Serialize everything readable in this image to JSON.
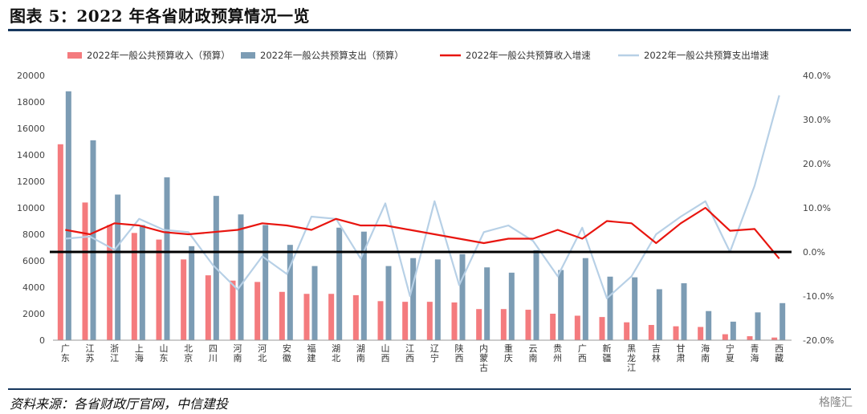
{
  "title": "图表 5：2022 年各省财政预算情况一览",
  "source": "资料来源：各省财政厅官网，中信建投",
  "watermark": "格隆汇",
  "colors": {
    "income_bar": "#f47b7e",
    "expense_bar": "#7c9cb4",
    "income_line": "#e8150f",
    "expense_line": "#b7d0e6",
    "baseline": "#000000",
    "rule": "#17375e"
  },
  "chart_data": {
    "type": "bar",
    "categories": [
      "广东",
      "江苏",
      "浙江",
      "上海",
      "山东",
      "北京",
      "四川",
      "河南",
      "河北",
      "安徽",
      "福建",
      "湖北",
      "湖南",
      "山西",
      "江西",
      "辽宁",
      "陕西",
      "内蒙古",
      "重庆",
      "云南",
      "贵州",
      "广西",
      "新疆",
      "黑龙江",
      "吉林",
      "甘肃",
      "海南",
      "宁夏",
      "青海",
      "西藏"
    ],
    "series": [
      {
        "name": "2022年一般公共预算收入（预算）",
        "axis": "left",
        "kind": "bar",
        "values": [
          14800,
          10400,
          8700,
          8100,
          7600,
          6100,
          4900,
          4500,
          4400,
          3650,
          3500,
          3500,
          3400,
          2950,
          2900,
          2900,
          2850,
          2350,
          2350,
          2300,
          2000,
          1850,
          1750,
          1350,
          1150,
          1050,
          1000,
          450,
          300,
          200
        ]
      },
      {
        "name": "2022年一般公共预算支出（预算）",
        "axis": "left",
        "kind": "bar",
        "values": [
          18800,
          15100,
          11000,
          8700,
          12300,
          7100,
          10900,
          9500,
          8700,
          7200,
          5600,
          8500,
          8200,
          5600,
          6200,
          6100,
          6500,
          5500,
          5100,
          6800,
          5300,
          6200,
          4800,
          4750,
          3850,
          4300,
          2200,
          1400,
          2100,
          2800
        ]
      },
      {
        "name": "2022年一般公共预算收入增速",
        "axis": "right",
        "kind": "line",
        "values": [
          5.0,
          4.0,
          6.5,
          6.0,
          4.5,
          4.0,
          4.5,
          5.0,
          6.5,
          6.0,
          5.0,
          7.5,
          6.0,
          6.0,
          5.0,
          4.0,
          3.0,
          2.0,
          3.0,
          3.0,
          5.0,
          3.0,
          7.0,
          6.5,
          2.0,
          6.5,
          10.0,
          4.8,
          5.2,
          -1.5
        ]
      },
      {
        "name": "2022年一般公共预算支出增速",
        "axis": "right",
        "kind": "line",
        "values": [
          3.0,
          3.5,
          0.5,
          7.5,
          5.0,
          4.5,
          -3.0,
          -8.5,
          -1.0,
          -5.0,
          8.0,
          7.5,
          -1.5,
          11.0,
          -10.0,
          11.5,
          -7.5,
          4.5,
          6.0,
          2.5,
          -5.5,
          5.5,
          -10.5,
          -5.5,
          4.0,
          8.0,
          11.5,
          0.0,
          15.0,
          35.5
        ]
      }
    ],
    "y_left": {
      "min": 0,
      "max": 20000,
      "step": 2000,
      "ticks": [
        "0",
        "2000",
        "4000",
        "6000",
        "8000",
        "10000",
        "12000",
        "14000",
        "16000",
        "18000",
        "20000"
      ]
    },
    "y_right": {
      "min": -20,
      "max": 40,
      "step": 10,
      "ticks": [
        "-20.0%",
        "-10.0%",
        "0.0%",
        "10.0%",
        "20.0%",
        "30.0%",
        "40.0%"
      ]
    },
    "reference_line_value": 0,
    "legend_position": "top"
  }
}
